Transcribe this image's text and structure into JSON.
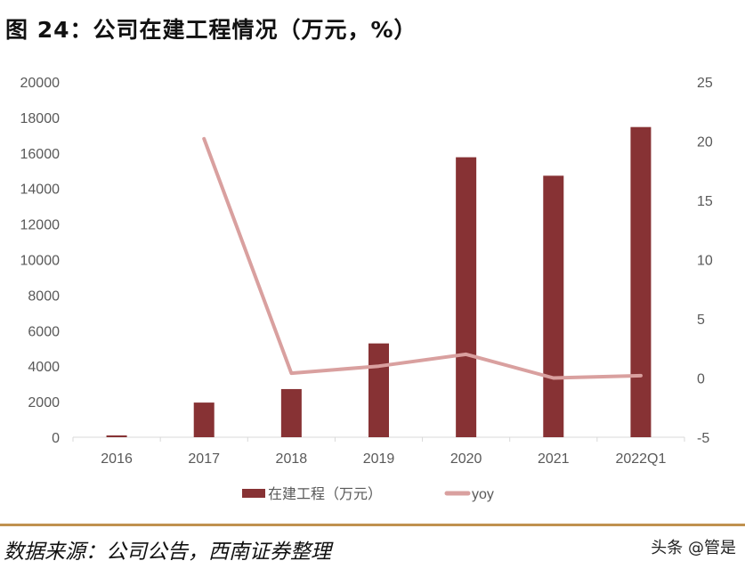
{
  "title": "图 24：公司在建工程情况（万元，%）",
  "source": "数据来源：公司公告，西南证券整理",
  "watermark": "头条 @管是",
  "colors": {
    "bar": "#873234",
    "line": "#d9a09f",
    "rule": "#c0914f",
    "axis": "#d9d9d9",
    "tick_text": "#595959"
  },
  "chart_data": {
    "type": "bar+line",
    "categories": [
      "2016",
      "2017",
      "2018",
      "2019",
      "2020",
      "2021",
      "2022Q1"
    ],
    "series": [
      {
        "name": "在建工程（万元）",
        "type": "bar",
        "axis": "left",
        "values": [
          100,
          1950,
          2710,
          5280,
          15760,
          14720,
          17460
        ]
      },
      {
        "name": "yoy",
        "type": "line",
        "axis": "right",
        "values": [
          null,
          20.2,
          0.4,
          1.0,
          2.0,
          0.0,
          0.2
        ]
      }
    ],
    "left_axis": {
      "ylim": [
        0,
        20000
      ],
      "ticks": [
        "0",
        "2000",
        "4000",
        "6000",
        "8000",
        "10000",
        "12000",
        "14000",
        "16000",
        "18000",
        "20000"
      ]
    },
    "right_axis": {
      "ylim": [
        -5,
        25
      ],
      "ticks": [
        "-5",
        "0",
        "5",
        "10",
        "15",
        "20",
        "25"
      ]
    },
    "grid": false,
    "legend": "bottom"
  }
}
